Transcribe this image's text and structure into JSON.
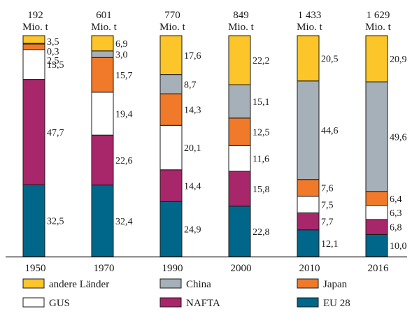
{
  "chart_data": {
    "type": "bar",
    "stacked": true,
    "normalized": true,
    "unit": "%",
    "categories": [
      "1950",
      "1970",
      "1990",
      "2000",
      "2010",
      "2016"
    ],
    "totals": [
      "192",
      "601",
      "770",
      "849",
      "1 433",
      "1 629"
    ],
    "total_unit": "Mio. t",
    "series": [
      {
        "name": "EU 28",
        "color": "#00678a",
        "values": [
          32.5,
          32.4,
          24.9,
          22.8,
          12.1,
          10.0
        ],
        "labels": [
          "32,5",
          "32,4",
          "24,9",
          "22,8",
          "12,1",
          "10,0"
        ]
      },
      {
        "name": "NAFTA",
        "color": "#a8276b",
        "values": [
          47.7,
          22.6,
          14.4,
          15.8,
          7.7,
          6.8
        ],
        "labels": [
          "47,7",
          "22,6",
          "14,4",
          "15,8",
          "7,7",
          "6,8"
        ]
      },
      {
        "name": "GUS",
        "color": "#ffffff",
        "values": [
          13.5,
          19.4,
          20.1,
          11.6,
          7.5,
          6.3
        ],
        "labels": [
          "13,5",
          "19,4",
          "20,1",
          "11,6",
          "7,5",
          "6,3"
        ]
      },
      {
        "name": "Japan",
        "color": "#f07a2a",
        "values": [
          2.5,
          15.7,
          14.3,
          12.5,
          7.6,
          6.4
        ],
        "labels": [
          "2,5",
          "15,7",
          "14,3",
          "12,5",
          "7,6",
          "6,4"
        ]
      },
      {
        "name": "China",
        "color": "#a5b0b8",
        "values": [
          0.3,
          3.0,
          8.7,
          15.1,
          44.6,
          49.6
        ],
        "labels": [
          "0,3",
          "3,0",
          "8,7",
          "15,1",
          "44,6",
          "49,6"
        ]
      },
      {
        "name": "andere Länder",
        "color": "#fcc52a",
        "values": [
          3.5,
          6.9,
          17.6,
          22.2,
          20.5,
          20.9
        ],
        "labels": [
          "3,5",
          "6,9",
          "17,6",
          "22,2",
          "20,5",
          "20,9"
        ]
      }
    ],
    "legend_order": [
      "andere Länder",
      "China",
      "Japan",
      "GUS",
      "NAFTA",
      "EU 28"
    ],
    "legend_position": "bottom",
    "ylim": [
      0,
      100
    ],
    "grid": false
  }
}
